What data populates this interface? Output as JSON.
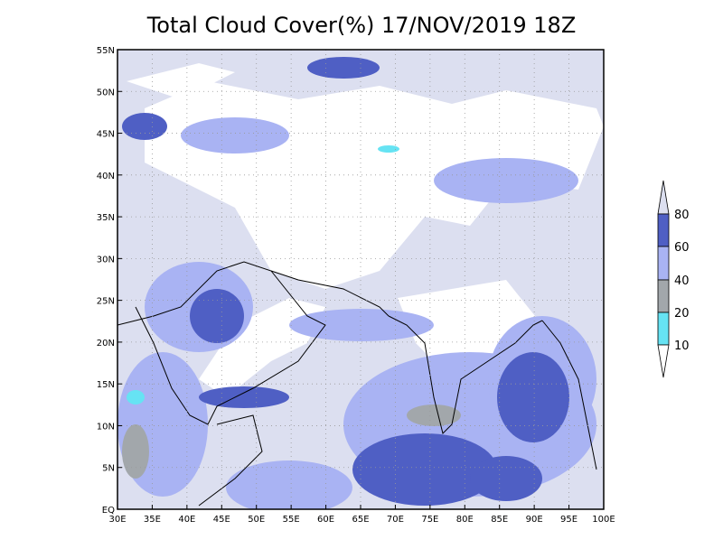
{
  "title": "Total Cloud Cover(%) 17/NOV/2019 18Z",
  "lon_labels": [
    "30E",
    "35E",
    "40E",
    "45E",
    "50E",
    "55E",
    "60E",
    "65E",
    "70E",
    "75E",
    "80E",
    "85E",
    "90E",
    "95E",
    "100E"
  ],
  "lat_labels": [
    "EQ",
    "5N",
    "10N",
    "15N",
    "20N",
    "25N",
    "30N",
    "35N",
    "40N",
    "45N",
    "50N",
    "55N"
  ],
  "colorbar": {
    "labels": [
      "10",
      "20",
      "40",
      "60",
      "80"
    ]
  }
}
